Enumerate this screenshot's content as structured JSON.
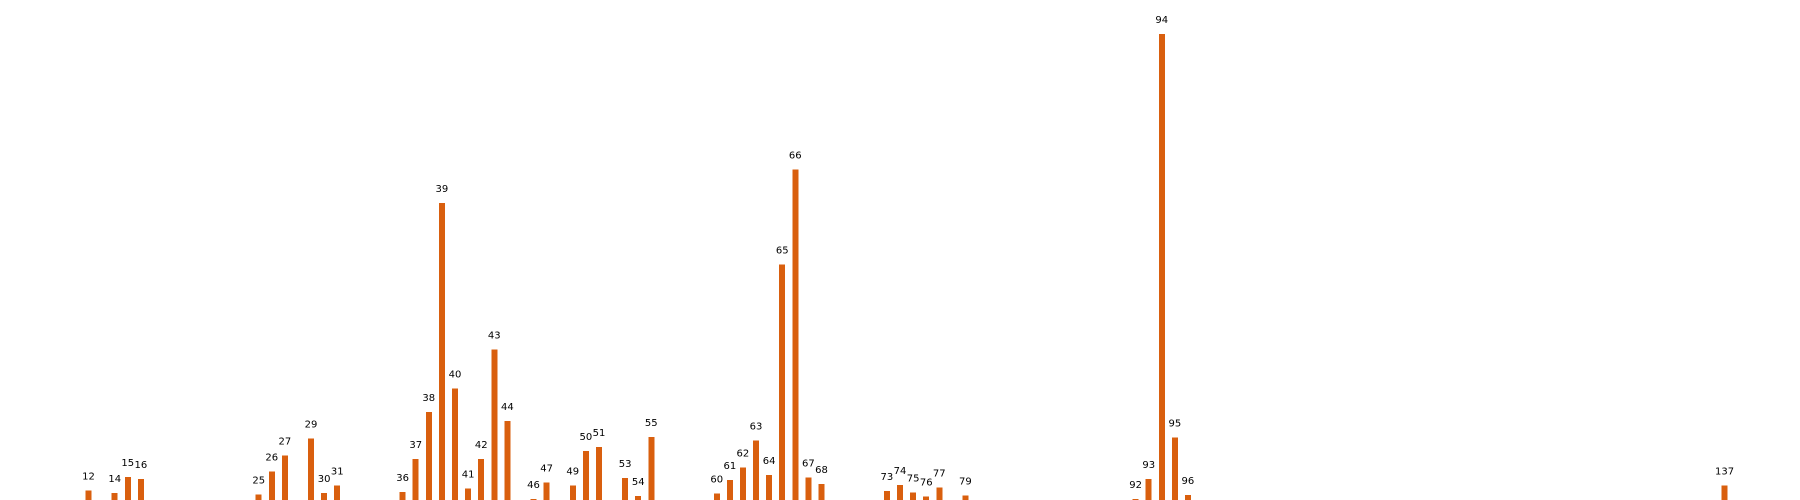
{
  "chart_data": {
    "type": "bar",
    "title": "",
    "xlabel": "",
    "ylabel": "",
    "bar_color": "#d95f0e",
    "label_color": "#000000",
    "grid": false,
    "axes_visible": false,
    "categories": [
      "12",
      "14",
      "15",
      "16",
      "25",
      "26",
      "27",
      "29",
      "30",
      "31",
      "36",
      "37",
      "38",
      "39",
      "40",
      "41",
      "42",
      "43",
      "44",
      "46",
      "47",
      "49",
      "50",
      "51",
      "53",
      "54",
      "55",
      "60",
      "61",
      "62",
      "63",
      "64",
      "65",
      "66",
      "67",
      "68",
      "73",
      "74",
      "75",
      "76",
      "77",
      "79",
      "92",
      "93",
      "94",
      "95",
      "96",
      "137"
    ],
    "x": [
      12,
      14,
      15,
      16,
      25,
      26,
      27,
      29,
      30,
      31,
      36,
      37,
      38,
      39,
      40,
      41,
      42,
      43,
      44,
      46,
      47,
      49,
      50,
      51,
      53,
      54,
      55,
      60,
      61,
      62,
      63,
      64,
      65,
      66,
      67,
      68,
      73,
      74,
      75,
      76,
      77,
      79,
      92,
      93,
      94,
      95,
      96,
      137
    ],
    "values": [
      3.3,
      2.4,
      8.0,
      7.2,
      1.9,
      9.8,
      15.5,
      21.4,
      2.5,
      5.0,
      2.7,
      14.2,
      30.5,
      103.0,
      38.6,
      4.0,
      14.2,
      52.2,
      27.4,
      0.4,
      6.1,
      5.0,
      17.0,
      18.4,
      7.7,
      1.4,
      21.8,
      2.3,
      7.0,
      11.2,
      20.7,
      8.6,
      81.7,
      114.6,
      7.8,
      5.5,
      3.1,
      5.2,
      2.6,
      1.2,
      4.4,
      1.6,
      0.3,
      7.3,
      161.6,
      21.6,
      1.7,
      5.0
    ],
    "xlim": [
      6,
      142
    ],
    "ylim": [
      0,
      165
    ]
  }
}
